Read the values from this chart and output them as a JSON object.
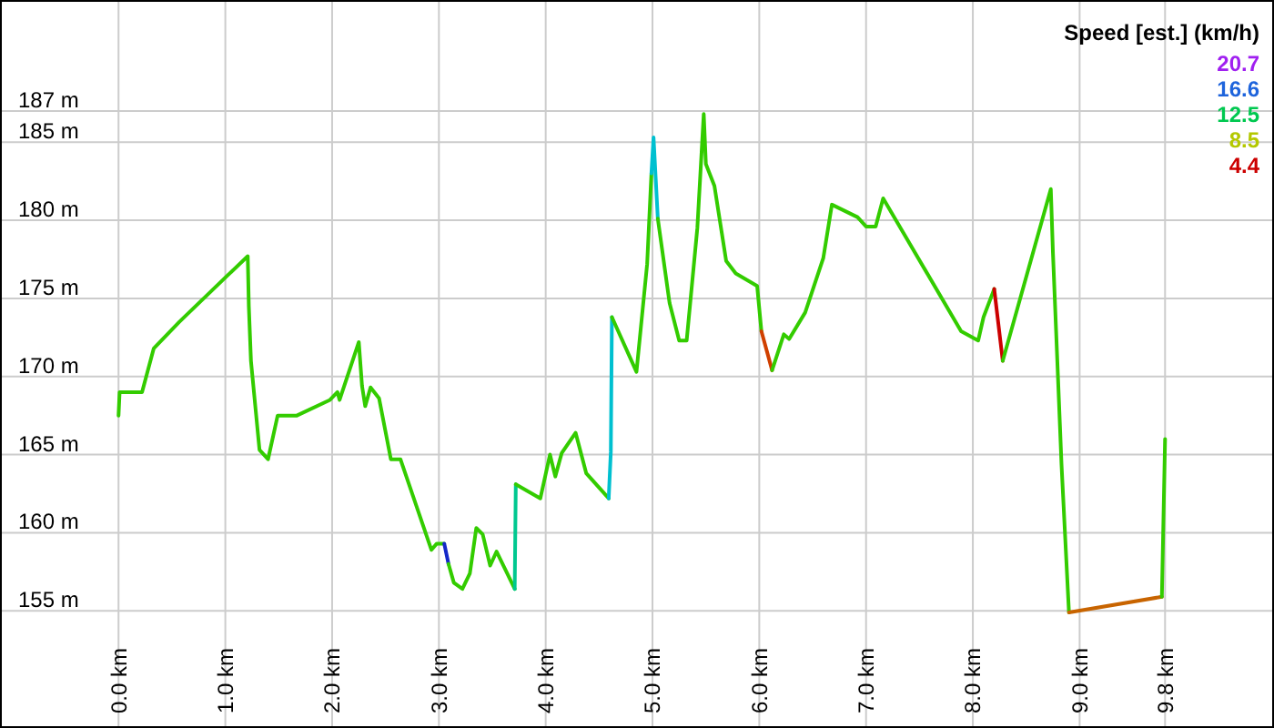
{
  "chart_data": {
    "type": "line",
    "grid": true,
    "annotations": [
      "Speed [est.] (km/h)",
      "20.7",
      "16.6",
      "12.5",
      "8.5",
      "4.4"
    ],
    "xlim": [
      -1.11,
      10.82
    ],
    "ylim": [
      147.5,
      194.1
    ],
    "xticks": [
      {
        "value": 0,
        "label": "0.0 km"
      },
      {
        "value": 1,
        "label": "1.0 km"
      },
      {
        "value": 2,
        "label": "2.0 km"
      },
      {
        "value": 3,
        "label": "3.0 km"
      },
      {
        "value": 4,
        "label": "4.0 km"
      },
      {
        "value": 5,
        "label": "5.0 km"
      },
      {
        "value": 6,
        "label": "6.0 km"
      },
      {
        "value": 7,
        "label": "7.0 km"
      },
      {
        "value": 8,
        "label": "8.0 km"
      },
      {
        "value": 9,
        "label": "9.0 km"
      },
      {
        "value": 9.8,
        "label": "9.8 km"
      }
    ],
    "yticks": [
      {
        "value": 155,
        "label": "155 m"
      },
      {
        "value": 160,
        "label": "160 m"
      },
      {
        "value": 165,
        "label": "165 m"
      },
      {
        "value": 170,
        "label": "170 m"
      },
      {
        "value": 175,
        "label": "175 m"
      },
      {
        "value": 180,
        "label": "180 m"
      },
      {
        "value": 185,
        "label": "185 m"
      },
      {
        "value": 187,
        "label": "187 m"
      }
    ],
    "series": [
      {
        "color": "#33cc00",
        "x": [
          0,
          0.01,
          0.22,
          0.33,
          0.57,
          1.01,
          1.21,
          1.22,
          1.24,
          1.32,
          1.4,
          1.49,
          1.67,
          1.98,
          2.05,
          2.07,
          2.25,
          2.28,
          2.31,
          2.36,
          2.44,
          2.55,
          2.64,
          2.81,
          2.93,
          2.98,
          3.05
        ],
        "values": [
          167.5,
          169.0,
          169.0,
          171.8,
          173.5,
          176.4,
          177.7,
          174.5,
          171.0,
          165.3,
          164.7,
          167.5,
          167.5,
          168.5,
          169.0,
          168.5,
          172.2,
          169.4,
          168.1,
          169.3,
          168.6,
          164.7,
          164.7,
          161.3,
          158.9,
          159.3,
          159.3
        ]
      },
      {
        "color": "#1428c8",
        "x": [
          3.05,
          3.09
        ],
        "values": [
          159.3,
          158.0
        ]
      },
      {
        "color": "#33cc00",
        "x": [
          3.09,
          3.14,
          3.22,
          3.29,
          3.35,
          3.41,
          3.48,
          3.54,
          3.71
        ],
        "values": [
          158.0,
          156.8,
          156.4,
          157.4,
          160.3,
          159.9,
          157.9,
          158.8,
          156.4
        ]
      },
      {
        "color": "#00c890",
        "x": [
          3.71,
          3.72
        ],
        "values": [
          156.4,
          163.1
        ]
      },
      {
        "color": "#33cc00",
        "x": [
          3.72,
          3.95,
          4.04,
          4.09,
          4.15,
          4.28,
          4.38,
          4.59
        ],
        "values": [
          163.1,
          162.2,
          165.0,
          163.6,
          165.1,
          166.4,
          163.8,
          162.2
        ]
      },
      {
        "color": "#00c0d0",
        "x": [
          4.59,
          4.61,
          4.62
        ],
        "values": [
          162.2,
          165.2,
          173.8
        ]
      },
      {
        "color": "#33cc00",
        "x": [
          4.62,
          4.85,
          4.95,
          4.99
        ],
        "values": [
          173.8,
          170.3,
          177.2,
          183.0
        ]
      },
      {
        "color": "#00c0d0",
        "x": [
          4.99,
          5.01,
          5.05
        ],
        "values": [
          183.0,
          185.3,
          180.1
        ]
      },
      {
        "color": "#33cc00",
        "x": [
          5.05,
          5.16,
          5.25,
          5.32,
          5.42,
          5.48,
          5.5,
          5.58,
          5.69,
          5.78,
          5.98,
          6.02
        ],
        "values": [
          180.1,
          174.7,
          172.3,
          172.3,
          179.5,
          186.8,
          183.6,
          182.2,
          177.4,
          176.6,
          175.8,
          172.9
        ]
      },
      {
        "color": "#d04000",
        "x": [
          6.02,
          6.12
        ],
        "values": [
          172.9,
          170.4
        ]
      },
      {
        "color": "#33cc00",
        "x": [
          6.12,
          6.23,
          6.28,
          6.43,
          6.6,
          6.68,
          6.92,
          7.0,
          7.09,
          7.16,
          7.89,
          8.05,
          8.1,
          8.2
        ],
        "values": [
          170.4,
          172.7,
          172.4,
          174.1,
          177.6,
          181.0,
          180.2,
          179.6,
          179.6,
          181.4,
          172.9,
          172.3,
          173.8,
          175.6
        ]
      },
      {
        "color": "#cc0000",
        "x": [
          8.2,
          8.28
        ],
        "values": [
          175.6,
          171.0
        ]
      },
      {
        "color": "#33cc00",
        "x": [
          8.28,
          8.73,
          8.75,
          8.83,
          8.9
        ],
        "values": [
          171.0,
          182.0,
          177.9,
          164.4,
          154.9
        ]
      },
      {
        "color": "#c86400",
        "x": [
          8.9,
          9.77
        ],
        "values": [
          154.9,
          155.9
        ]
      },
      {
        "color": "#33cc00",
        "x": [
          9.77,
          9.8
        ],
        "values": [
          155.9,
          166.0
        ]
      }
    ]
  }
}
